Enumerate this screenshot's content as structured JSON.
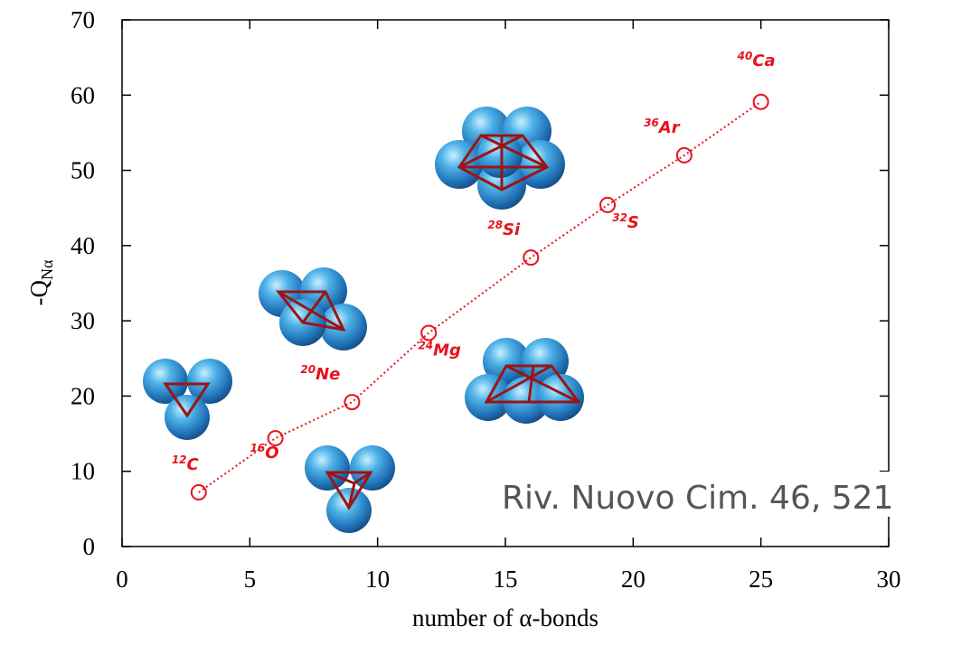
{
  "chart_data": {
    "type": "scatter",
    "x_label": "number of α-bonds",
    "y_label": {
      "main": "-Q",
      "sub": "Nα"
    },
    "annotation": "Riv. Nuovo Cim. 46, 521",
    "x": [
      3,
      6,
      9,
      12,
      16,
      19,
      22,
      25
    ],
    "values": [
      7.2,
      14.4,
      19.2,
      28.4,
      38.4,
      45.4,
      52,
      59.1
    ],
    "point_labels": [
      {
        "mass": "12",
        "symbol": "C"
      },
      {
        "mass": "16",
        "symbol": "O"
      },
      {
        "mass": "20",
        "symbol": "Ne"
      },
      {
        "mass": "24",
        "symbol": "Mg"
      },
      {
        "mass": "28",
        "symbol": "Si"
      },
      {
        "mass": "32",
        "symbol": "S"
      },
      {
        "mass": "36",
        "symbol": "Ar"
      },
      {
        "mass": "40",
        "symbol": "Ca"
      }
    ],
    "color": "#e8121c",
    "line": true,
    "xlim": [
      0,
      30
    ],
    "xticks": [
      0,
      5,
      10,
      15,
      20,
      25,
      30
    ],
    "ylim": [
      0,
      70
    ],
    "yticks": [
      0,
      10,
      20,
      30,
      40,
      50,
      60,
      70
    ]
  }
}
